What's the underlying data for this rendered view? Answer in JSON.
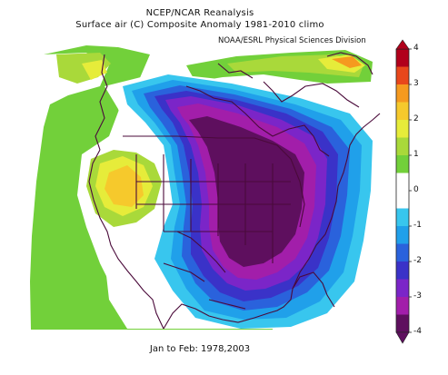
{
  "title": "NCEP/NCAR Reanalysis",
  "subtitle": "Surface air (C) Composite Anomaly 1981-2010 climo",
  "source": "NOAA/ESRL Physical Sciences Division",
  "period": "Jan to Feb: 1978,2003",
  "colorbar": {
    "ticks": [
      "4",
      "3",
      "2",
      "1",
      "0",
      "-1",
      "-2",
      "-3",
      "-4"
    ],
    "bins": [
      {
        "range": [
          3.5,
          4
        ],
        "color": "#b1001b"
      },
      {
        "range": [
          3,
          3.5
        ],
        "color": "#e8471b"
      },
      {
        "range": [
          2.5,
          3
        ],
        "color": "#f59a1f"
      },
      {
        "range": [
          2,
          2.5
        ],
        "color": "#f6c92c"
      },
      {
        "range": [
          1.5,
          2
        ],
        "color": "#e6ec3a"
      },
      {
        "range": [
          1,
          1.5
        ],
        "color": "#a9d93a"
      },
      {
        "range": [
          0.5,
          1
        ],
        "color": "#72d03a"
      },
      {
        "range": [
          -0.5,
          0.5
        ],
        "color": "#ffffff"
      },
      {
        "range": [
          -1,
          -0.5
        ],
        "color": "#38c6ee"
      },
      {
        "range": [
          -1.5,
          -1
        ],
        "color": "#20a0ea"
      },
      {
        "range": [
          -2,
          -1.5
        ],
        "color": "#2a62dc"
      },
      {
        "range": [
          -2.5,
          -2
        ],
        "color": "#3a32c8"
      },
      {
        "range": [
          -3,
          -2.5
        ],
        "color": "#7b25c8"
      },
      {
        "range": [
          -3.5,
          -3
        ],
        "color": "#a21eaa"
      },
      {
        "range": [
          -4,
          -3.5
        ],
        "color": "#5e0f5e"
      }
    ]
  }
}
